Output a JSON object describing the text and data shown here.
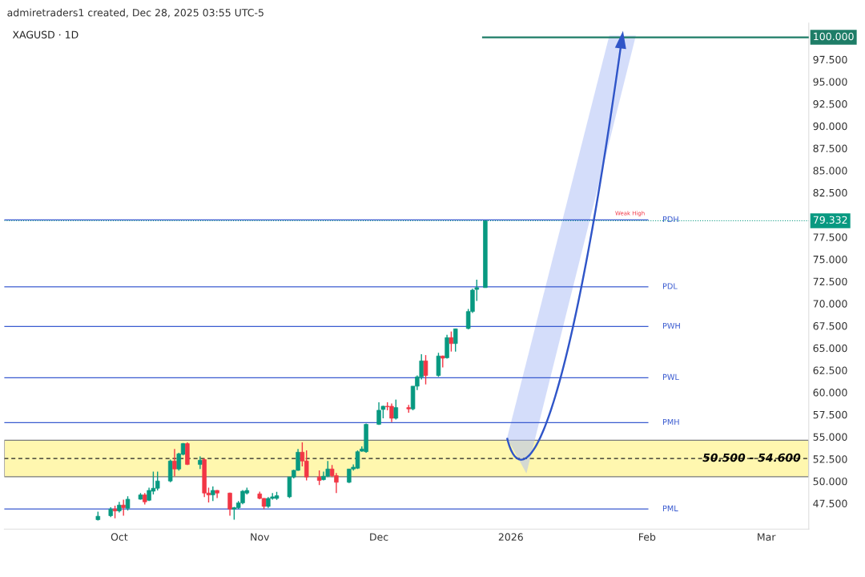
{
  "chart_data": {
    "type": "candlestick",
    "title": "XAGUSD · 1D",
    "annotations": [
      "admiretraders1 created, Dec 28, 2025 03:55 UTC-5",
      {
        "text": "Weak High",
        "x": "2026-01-29",
        "y": 79.332
      }
    ],
    "x": [
      "2025-09-26",
      "2025-09-29",
      "2025-09-30",
      "2025-10-01",
      "2025-10-02",
      "2025-10-03",
      "2025-10-06",
      "2025-10-07",
      "2025-10-08",
      "2025-10-09",
      "2025-10-10",
      "2025-10-13",
      "2025-10-14",
      "2025-10-15",
      "2025-10-16",
      "2025-10-17",
      "2025-10-20",
      "2025-10-21",
      "2025-10-22",
      "2025-10-23",
      "2025-10-24",
      "2025-10-27",
      "2025-10-28",
      "2025-10-29",
      "2025-10-30",
      "2025-10-31",
      "2025-11-03",
      "2025-11-04",
      "2025-11-05",
      "2025-11-06",
      "2025-11-07",
      "2025-11-10",
      "2025-11-11",
      "2025-11-12",
      "2025-11-13",
      "2025-11-14",
      "2025-11-17",
      "2025-11-18",
      "2025-11-19",
      "2025-11-20",
      "2025-11-21",
      "2025-11-24",
      "2025-11-25",
      "2025-11-26",
      "2025-11-27",
      "2025-11-28",
      "2025-12-01",
      "2025-12-02",
      "2025-12-03",
      "2025-12-04",
      "2025-12-05",
      "2025-12-08",
      "2025-12-09",
      "2025-12-10",
      "2025-12-11",
      "2025-12-12",
      "2025-12-15",
      "2025-12-16",
      "2025-12-17",
      "2025-12-18",
      "2025-12-19",
      "2025-12-22",
      "2025-12-23",
      "2025-12-24",
      "2025-12-26"
    ],
    "ohlc": [
      [
        45.66,
        46.56,
        45.57,
        46.05
      ],
      [
        46.11,
        47.07,
        45.96,
        46.86
      ],
      [
        46.86,
        47.25,
        45.81,
        46.65
      ],
      [
        46.65,
        47.67,
        46.47,
        47.31
      ],
      [
        47.31,
        47.91,
        46.11,
        47.01
      ],
      [
        46.95,
        48.3,
        46.7,
        47.97
      ],
      [
        47.97,
        48.66,
        47.91,
        48.45
      ],
      [
        48.45,
        48.66,
        47.37,
        47.67
      ],
      [
        47.85,
        49.26,
        47.76,
        48.96
      ],
      [
        48.87,
        51.07,
        48.5,
        49.2
      ],
      [
        49.2,
        51.07,
        48.96,
        50.02
      ],
      [
        50.02,
        52.42,
        49.87,
        52.27
      ],
      [
        52.27,
        53.63,
        50.56,
        51.37
      ],
      [
        51.37,
        53.2,
        51.2,
        53.08
      ],
      [
        53.02,
        54.3,
        52.9,
        54.23
      ],
      [
        54.23,
        54.38,
        51.82,
        51.88
      ],
      [
        51.88,
        52.78,
        51.37,
        52.36
      ],
      [
        52.42,
        52.57,
        48.2,
        48.66
      ],
      [
        48.66,
        49.26,
        47.61,
        48.45
      ],
      [
        48.45,
        49.4,
        47.76,
        48.96
      ],
      [
        48.96,
        49.0,
        48.1,
        48.66
      ],
      [
        48.66,
        48.7,
        46.11,
        46.86
      ],
      [
        46.86,
        47.1,
        45.66,
        47.01
      ],
      [
        47.01,
        47.76,
        46.86,
        47.55
      ],
      [
        47.55,
        49.0,
        47.4,
        48.87
      ],
      [
        48.66,
        49.26,
        48.5,
        48.96
      ],
      [
        48.57,
        48.81,
        47.97,
        48.06
      ],
      [
        48.06,
        48.1,
        46.86,
        47.16
      ],
      [
        47.16,
        48.2,
        47.0,
        48.06
      ],
      [
        48.06,
        48.66,
        47.91,
        48.24
      ],
      [
        48.06,
        48.8,
        47.9,
        48.36
      ],
      [
        48.24,
        50.5,
        48.1,
        50.47
      ],
      [
        50.47,
        51.3,
        50.3,
        51.22
      ],
      [
        51.22,
        53.63,
        51.16,
        53.26
      ],
      [
        53.26,
        54.38,
        51.67,
        52.27
      ],
      [
        52.27,
        53.47,
        50.08,
        50.47
      ],
      [
        50.47,
        51.22,
        49.57,
        50.08
      ],
      [
        50.17,
        51.07,
        50.08,
        50.56
      ],
      [
        50.56,
        52.27,
        50.47,
        51.37
      ],
      [
        51.37,
        51.82,
        50.47,
        50.62
      ],
      [
        50.62,
        50.92,
        48.66,
        49.87
      ],
      [
        49.87,
        51.4,
        49.8,
        51.37
      ],
      [
        51.37,
        51.88,
        51.2,
        51.58
      ],
      [
        51.46,
        53.47,
        51.37,
        53.32
      ],
      [
        53.38,
        53.93,
        53.32,
        53.62
      ],
      [
        53.32,
        56.5,
        53.2,
        56.4
      ],
      [
        56.4,
        58.89,
        56.34,
        57.99
      ],
      [
        58.08,
        58.5,
        57.09,
        58.44
      ],
      [
        58.44,
        58.89,
        57.99,
        58.38
      ],
      [
        58.44,
        58.74,
        56.64,
        57.09
      ],
      [
        57.09,
        59.19,
        56.94,
        58.29
      ],
      [
        58.29,
        58.6,
        57.7,
        58.14
      ],
      [
        58.14,
        60.7,
        57.99,
        60.7
      ],
      [
        60.7,
        61.9,
        60.25,
        61.75
      ],
      [
        61.75,
        64.3,
        61.45,
        63.55
      ],
      [
        63.55,
        64.2,
        60.9,
        61.9
      ],
      [
        61.9,
        64.46,
        61.75,
        64.1
      ],
      [
        64.1,
        64.15,
        62.8,
        63.85
      ],
      [
        63.9,
        66.5,
        63.8,
        66.17
      ],
      [
        66.17,
        66.86,
        64.6,
        65.5
      ],
      [
        65.5,
        67.2,
        64.6,
        67.16
      ],
      [
        67.2,
        69.4,
        67.1,
        69.11
      ],
      [
        69.11,
        71.67,
        68.96,
        71.52
      ],
      [
        71.6,
        72.7,
        70.3,
        71.8
      ],
      [
        71.8,
        79.332,
        71.8,
        79.332
      ]
    ],
    "xlim": [
      "2025-09-04",
      "2026-03-12"
    ],
    "xticks": [
      {
        "value": "2025-10-01",
        "label": "Oct"
      },
      {
        "value": "2025-11-03",
        "label": "Nov"
      },
      {
        "value": "2025-12-01",
        "label": "Dec"
      },
      {
        "value": "2026-01-01",
        "label": "2026"
      },
      {
        "value": "2026-02-02",
        "label": "Feb"
      },
      {
        "value": "2026-03-02",
        "label": "Mar"
      }
    ],
    "ylim": [
      44.6,
      101.6
    ],
    "yticks": [
      {
        "value": 47.5,
        "label": "47.500"
      },
      {
        "value": 50,
        "label": "50.000"
      },
      {
        "value": 52.5,
        "label": "52.500"
      },
      {
        "value": 55,
        "label": "55.000"
      },
      {
        "value": 57.5,
        "label": "57.500"
      },
      {
        "value": 60,
        "label": "60.000"
      },
      {
        "value": 62.5,
        "label": "62.500"
      },
      {
        "value": 65,
        "label": "65.000"
      },
      {
        "value": 67.5,
        "label": "67.500"
      },
      {
        "value": 70,
        "label": "70.000"
      },
      {
        "value": 72.5,
        "label": "72.500"
      },
      {
        "value": 75,
        "label": "75.000"
      },
      {
        "value": 77.5,
        "label": "77.500"
      },
      {
        "value": 82.5,
        "label": "82.500"
      },
      {
        "value": 85,
        "label": "85.000"
      },
      {
        "value": 87.5,
        "label": "87.500"
      },
      {
        "value": 90,
        "label": "90.000"
      },
      {
        "value": 92.5,
        "label": "92.500"
      },
      {
        "value": 95,
        "label": "95.000"
      },
      {
        "value": 97.5,
        "label": "97.500"
      }
    ],
    "bands": [
      {
        "axis": "y",
        "from": 50.5,
        "to": 54.6,
        "label": "50.500 - 54.600",
        "color": "#fff27a"
      }
    ],
    "ref_lines": [
      {
        "axis": "y",
        "value": 100,
        "label": "100.000",
        "color": "#1e7d67"
      },
      {
        "axis": "y",
        "value": 79.332,
        "label": "79.332",
        "color": "#089981",
        "line_style": "dotted"
      },
      {
        "axis": "y",
        "value": 52.55,
        "label": null,
        "color": "#222222",
        "line_style": "dashed"
      },
      {
        "axis": "y",
        "value": 79.43,
        "label": "PDH"
      },
      {
        "axis": "y",
        "value": 71.9,
        "label": "PDL"
      },
      {
        "axis": "y",
        "value": 67.43,
        "label": "PWH"
      },
      {
        "axis": "y",
        "value": 61.66,
        "label": "PWL"
      },
      {
        "axis": "y",
        "value": 56.6,
        "label": "PMH"
      },
      {
        "axis": "y",
        "value": 46.86,
        "label": "PML"
      }
    ],
    "grid": false
  }
}
